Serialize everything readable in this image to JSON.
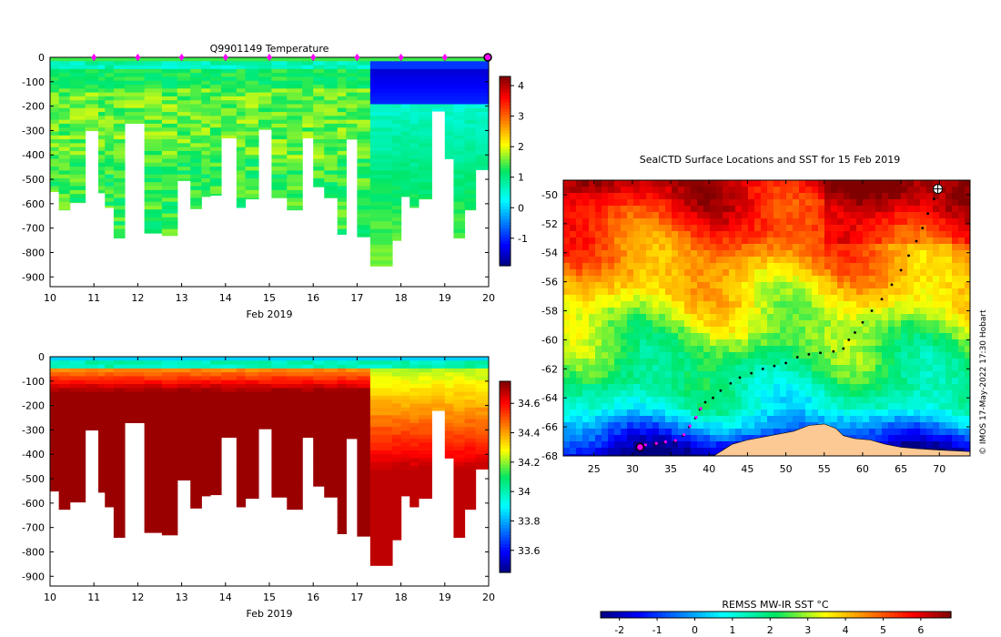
{
  "chart_data": [
    {
      "type": "heatmap",
      "name": "temperature-section",
      "title": "Q9901149  Temperature",
      "xlabel": "Feb 2019",
      "xlim": [
        10,
        20
      ],
      "xticks": [
        "10",
        "11",
        "12",
        "13",
        "14",
        "15",
        "16",
        "17",
        "18",
        "19",
        "20"
      ],
      "ylim": [
        -940,
        0
      ],
      "yticks": [
        "0",
        "-100",
        "-200",
        "-300",
        "-400",
        "-500",
        "-600",
        "-700",
        "-800",
        "-900"
      ],
      "profile_markers_x": [
        11,
        12,
        13,
        14,
        15,
        16,
        17,
        18,
        19
      ],
      "current_marker_x": 20,
      "colorbar": {
        "min": -1.9,
        "max": 4.3,
        "ticks": [
          "4",
          "3",
          "2",
          "1",
          "0",
          "-1"
        ],
        "tick_values": [
          4,
          3,
          2,
          1,
          0,
          -1
        ]
      },
      "profile_ends": [
        {
          "x0": 10.0,
          "x1": 10.2,
          "depth": 550
        },
        {
          "x0": 10.2,
          "x1": 10.45,
          "depth": 625
        },
        {
          "x0": 10.45,
          "x1": 10.8,
          "depth": 595
        },
        {
          "x0": 10.8,
          "x1": 11.1,
          "depth": 300
        },
        {
          "x0": 11.1,
          "x1": 11.25,
          "depth": 555
        },
        {
          "x0": 11.25,
          "x1": 11.45,
          "depth": 615
        },
        {
          "x0": 11.45,
          "x1": 11.7,
          "depth": 740
        },
        {
          "x0": 11.7,
          "x1": 12.15,
          "depth": 270
        },
        {
          "x0": 12.15,
          "x1": 12.55,
          "depth": 720
        },
        {
          "x0": 12.55,
          "x1": 12.9,
          "depth": 730
        },
        {
          "x0": 12.9,
          "x1": 13.2,
          "depth": 505
        },
        {
          "x0": 13.2,
          "x1": 13.45,
          "depth": 620
        },
        {
          "x0": 13.45,
          "x1": 13.65,
          "depth": 570
        },
        {
          "x0": 13.65,
          "x1": 13.9,
          "depth": 565
        },
        {
          "x0": 13.9,
          "x1": 14.25,
          "depth": 330
        },
        {
          "x0": 14.25,
          "x1": 14.45,
          "depth": 615
        },
        {
          "x0": 14.45,
          "x1": 14.75,
          "depth": 580
        },
        {
          "x0": 14.75,
          "x1": 15.05,
          "depth": 295
        },
        {
          "x0": 15.05,
          "x1": 15.4,
          "depth": 575
        },
        {
          "x0": 15.4,
          "x1": 15.75,
          "depth": 625
        },
        {
          "x0": 15.75,
          "x1": 16.0,
          "depth": 330
        },
        {
          "x0": 16.0,
          "x1": 16.25,
          "depth": 530
        },
        {
          "x0": 16.25,
          "x1": 16.55,
          "depth": 575
        },
        {
          "x0": 16.55,
          "x1": 16.75,
          "depth": 725
        },
        {
          "x0": 16.75,
          "x1": 17.0,
          "depth": 335
        },
        {
          "x0": 17.0,
          "x1": 17.3,
          "depth": 735
        },
        {
          "x0": 17.3,
          "x1": 17.8,
          "depth": 855
        },
        {
          "x0": 17.8,
          "x1": 18.0,
          "depth": 750
        },
        {
          "x0": 18.0,
          "x1": 18.2,
          "depth": 570
        },
        {
          "x0": 18.2,
          "x1": 18.4,
          "depth": 615
        },
        {
          "x0": 18.4,
          "x1": 18.7,
          "depth": 580
        },
        {
          "x0": 18.7,
          "x1": 19.0,
          "depth": 220
        },
        {
          "x0": 19.0,
          "x1": 19.2,
          "depth": 415
        },
        {
          "x0": 19.2,
          "x1": 19.45,
          "depth": 740
        },
        {
          "x0": 19.45,
          "x1": 19.7,
          "depth": 625
        },
        {
          "x0": 19.7,
          "x1": 20.0,
          "depth": 460
        }
      ]
    },
    {
      "type": "heatmap",
      "name": "salinity-section",
      "title": "",
      "xlabel": "Feb 2019",
      "xlim": [
        10,
        20
      ],
      "xticks": [
        "10",
        "11",
        "12",
        "13",
        "14",
        "15",
        "16",
        "17",
        "18",
        "19",
        "20"
      ],
      "ylim": [
        -940,
        0
      ],
      "yticks": [
        "0",
        "-100",
        "-200",
        "-300",
        "-400",
        "-500",
        "-600",
        "-700",
        "-800",
        "-900"
      ],
      "colorbar": {
        "min": 33.45,
        "max": 34.75,
        "ticks": [
          "34.6",
          "34.4",
          "34.2",
          "34",
          "33.8",
          "33.6"
        ],
        "tick_values": [
          34.6,
          34.4,
          34.2,
          34.0,
          33.8,
          33.6
        ]
      }
    },
    {
      "type": "heatmap",
      "name": "sst-map",
      "title": "SealCTD Surface Locations and SST for 15 Feb 2019",
      "xlim": [
        21,
        74
      ],
      "ylim": [
        -68,
        -49
      ],
      "xticks": [
        "25",
        "30",
        "35",
        "40",
        "45",
        "50",
        "55",
        "60",
        "65",
        "70"
      ],
      "xtick_values": [
        25,
        30,
        35,
        40,
        45,
        50,
        55,
        60,
        65,
        70
      ],
      "yticks": [
        "-50",
        "-52",
        "-54",
        "-56",
        "-58",
        "-60",
        "-62",
        "-64",
        "-66",
        "-68"
      ],
      "ytick_values": [
        -50,
        -52,
        -54,
        -56,
        -58,
        -60,
        -62,
        -64,
        -66,
        -68
      ],
      "track": [
        [
          69.8,
          -49.6
        ],
        [
          69.3,
          -50.3
        ],
        [
          68.5,
          -51.3
        ],
        [
          67.8,
          -52.3
        ],
        [
          67.0,
          -53.2
        ],
        [
          66.0,
          -54.2
        ],
        [
          65.0,
          -55.2
        ],
        [
          63.8,
          -56.2
        ],
        [
          62.5,
          -57.2
        ],
        [
          61.2,
          -58.0
        ],
        [
          60.0,
          -58.8
        ],
        [
          59.0,
          -59.5
        ],
        [
          58.2,
          -60.0
        ],
        [
          57.5,
          -60.6
        ],
        [
          56.2,
          -60.8
        ],
        [
          54.5,
          -60.9
        ],
        [
          53.0,
          -61.0
        ],
        [
          51.5,
          -61.2
        ],
        [
          50.0,
          -61.6
        ],
        [
          48.5,
          -61.8
        ],
        [
          47.0,
          -62.0
        ],
        [
          45.5,
          -62.3
        ],
        [
          44.0,
          -62.6
        ],
        [
          42.8,
          -63.0
        ],
        [
          41.5,
          -63.5
        ],
        [
          40.5,
          -64.0
        ],
        [
          39.5,
          -64.3
        ],
        [
          38.8,
          -64.8
        ],
        [
          38.2,
          -65.4
        ],
        [
          37.4,
          -66.0
        ],
        [
          36.6,
          -66.6
        ],
        [
          35.5,
          -67.0
        ],
        [
          34.2,
          -67.1
        ],
        [
          33.0,
          -67.2
        ],
        [
          31.6,
          -67.3
        ]
      ],
      "recent_track": [
        [
          38.8,
          -64.8
        ],
        [
          38.2,
          -65.4
        ],
        [
          37.4,
          -66.0
        ],
        [
          36.6,
          -66.6
        ],
        [
          35.5,
          -67.0
        ],
        [
          34.2,
          -67.1
        ],
        [
          33.0,
          -67.2
        ],
        [
          31.6,
          -67.3
        ]
      ],
      "start_marker": [
        31.0,
        -67.4
      ],
      "latest_marker": [
        69.8,
        -49.6
      ],
      "colorbar": {
        "label": "REMSS MW-IR SST °C",
        "min": -2.5,
        "max": 6.8,
        "ticks": [
          "-2",
          "-1",
          "0",
          "1",
          "2",
          "3",
          "4",
          "5",
          "6"
        ],
        "tick_values": [
          -2,
          -1,
          0,
          1,
          2,
          3,
          4,
          5,
          6
        ]
      }
    }
  ],
  "credit": "© IMOS 17-May-2022 17:30 Hobart"
}
